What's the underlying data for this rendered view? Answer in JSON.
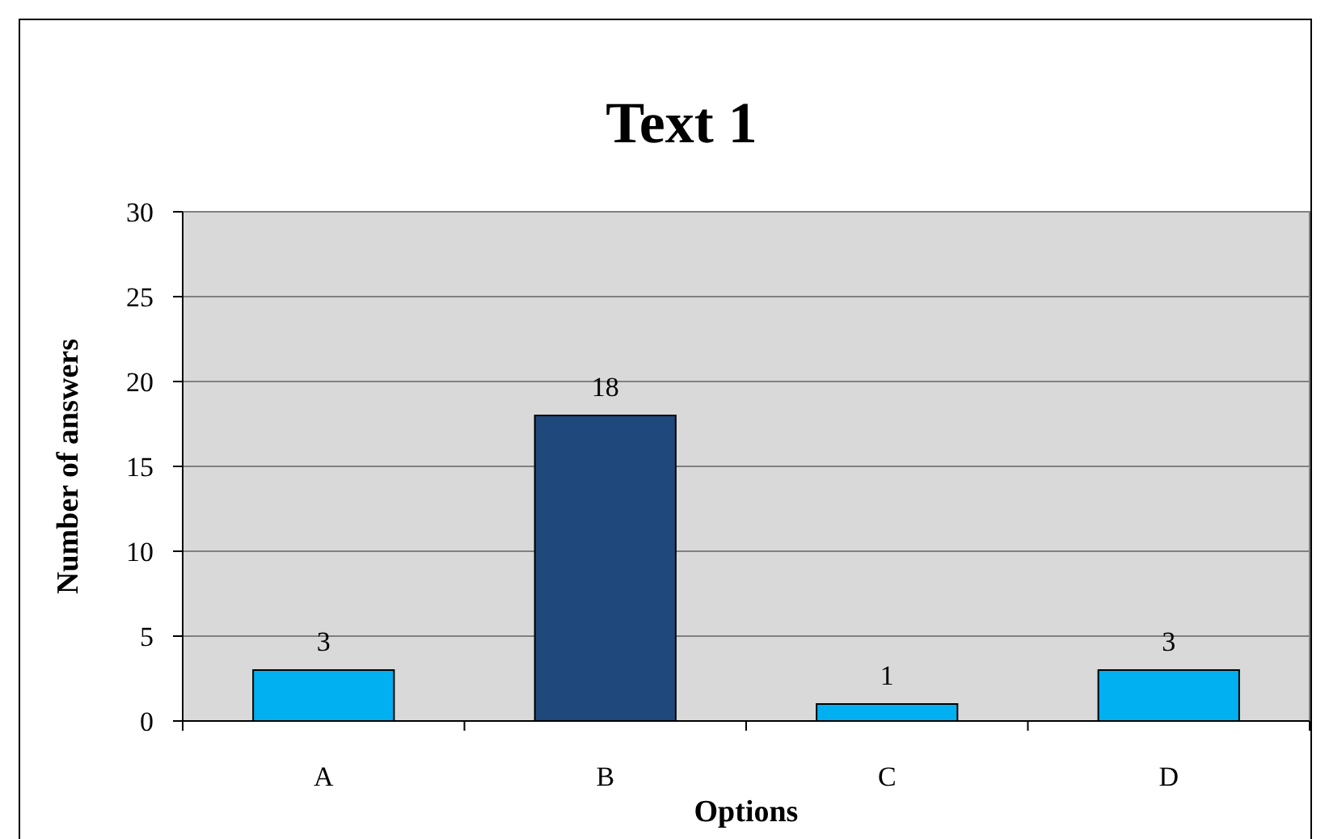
{
  "chart_data": {
    "type": "bar",
    "title": "Text 1",
    "xlabel": "Options",
    "ylabel": "Number of answers",
    "categories": [
      "A",
      "B",
      "C",
      "D"
    ],
    "values": [
      3,
      18,
      1,
      3
    ],
    "colors": [
      "#00b0f0",
      "#1f497d",
      "#00b0f0",
      "#00b0f0"
    ],
    "ylim": [
      0,
      30
    ],
    "yticks": [
      0,
      5,
      10,
      15,
      20,
      25,
      30
    ],
    "grid": "y",
    "data_labels": true
  }
}
